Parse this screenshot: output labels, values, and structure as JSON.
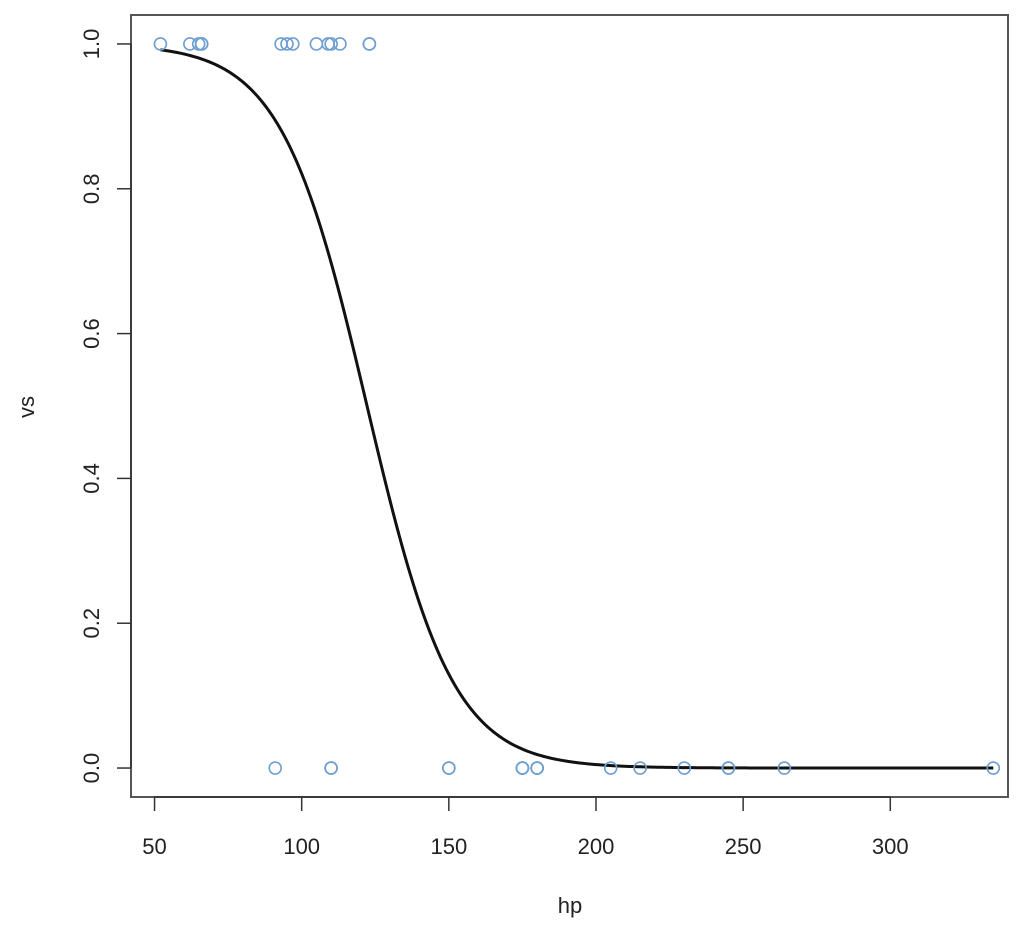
{
  "chart_data": {
    "type": "scatter",
    "title": "",
    "xlabel": "hp",
    "ylabel": "vs",
    "xlim": [
      42,
      340
    ],
    "ylim": [
      -0.04,
      1.04
    ],
    "x_ticks": [
      50,
      100,
      150,
      200,
      250,
      300
    ],
    "x_tick_labels": [
      "50",
      "100",
      "150",
      "200",
      "250",
      "300"
    ],
    "y_ticks": [
      0.0,
      0.2,
      0.4,
      0.6,
      0.8,
      1.0
    ],
    "y_tick_labels": [
      "0.0",
      "0.2",
      "0.4",
      "0.6",
      "0.8",
      "1.0"
    ],
    "grid": false,
    "legend": "none",
    "point_color": "#6f9fd0",
    "curve_color": "#111111",
    "points": [
      {
        "x": 52,
        "y": 1
      },
      {
        "x": 62,
        "y": 1
      },
      {
        "x": 65,
        "y": 1
      },
      {
        "x": 66,
        "y": 1
      },
      {
        "x": 66,
        "y": 1
      },
      {
        "x": 93,
        "y": 1
      },
      {
        "x": 95,
        "y": 1
      },
      {
        "x": 97,
        "y": 1
      },
      {
        "x": 105,
        "y": 1
      },
      {
        "x": 109,
        "y": 1
      },
      {
        "x": 110,
        "y": 1
      },
      {
        "x": 113,
        "y": 1
      },
      {
        "x": 123,
        "y": 1
      },
      {
        "x": 123,
        "y": 1
      },
      {
        "x": 91,
        "y": 0
      },
      {
        "x": 110,
        "y": 0
      },
      {
        "x": 110,
        "y": 0
      },
      {
        "x": 150,
        "y": 0
      },
      {
        "x": 150,
        "y": 0
      },
      {
        "x": 175,
        "y": 0
      },
      {
        "x": 175,
        "y": 0
      },
      {
        "x": 175,
        "y": 0
      },
      {
        "x": 180,
        "y": 0
      },
      {
        "x": 180,
        "y": 0
      },
      {
        "x": 180,
        "y": 0
      },
      {
        "x": 205,
        "y": 0
      },
      {
        "x": 215,
        "y": 0
      },
      {
        "x": 230,
        "y": 0
      },
      {
        "x": 245,
        "y": 0
      },
      {
        "x": 245,
        "y": 0
      },
      {
        "x": 264,
        "y": 0
      },
      {
        "x": 335,
        "y": 0
      }
    ],
    "fitted_curve": {
      "type": "logistic",
      "intercept": 8.3786,
      "slope": -0.06856,
      "x_range": [
        52,
        335
      ]
    }
  }
}
